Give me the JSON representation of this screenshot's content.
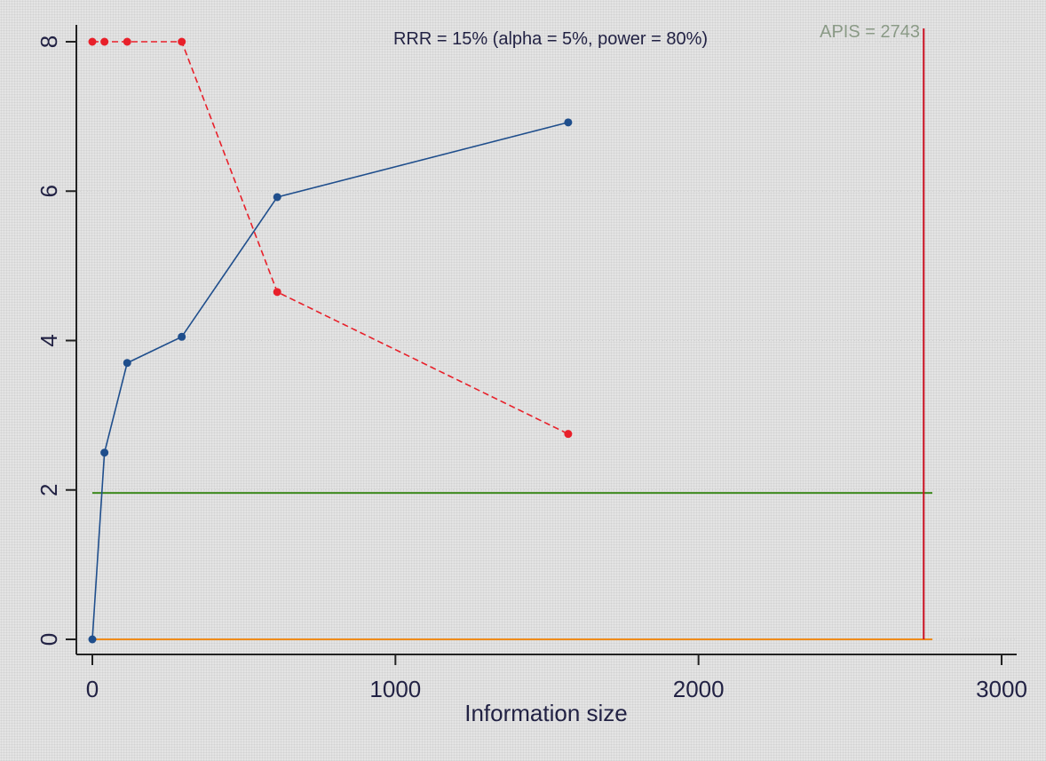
{
  "chart_data": {
    "type": "line",
    "xlabel": "Information size",
    "ylabel": "",
    "xlim": [
      0,
      3000
    ],
    "ylim": [
      0,
      8
    ],
    "x_ticks": [
      "0",
      "1000",
      "2000",
      "3000"
    ],
    "y_ticks": [
      "0",
      "2",
      "4",
      "6",
      "8"
    ],
    "annotation": "RRR = 15% (alpha = 5%, power = 80%)",
    "apis_label": "APIS = 2743",
    "apis_value": 2743,
    "series": [
      {
        "color": "#1f4e8c",
        "style": "solid",
        "x": [
          0,
          40,
          115,
          295,
          610,
          1570
        ],
        "y": [
          0,
          2.5,
          3.7,
          4.05,
          5.92,
          6.92
        ]
      },
      {
        "color": "#e8202a",
        "style": "dashed",
        "x": [
          0,
          40,
          115,
          295,
          610,
          1570
        ],
        "y": [
          8,
          8,
          8,
          8,
          4.65,
          2.75
        ]
      }
    ],
    "reference_lines": [
      {
        "type": "horizontal",
        "y": 1.96,
        "color": "#3d8a1e"
      },
      {
        "type": "horizontal",
        "y": 0,
        "color": "#f08c1a"
      },
      {
        "type": "vertical",
        "x": 2743,
        "color": "#cc1122"
      }
    ],
    "grid": "horizontal dotted"
  }
}
